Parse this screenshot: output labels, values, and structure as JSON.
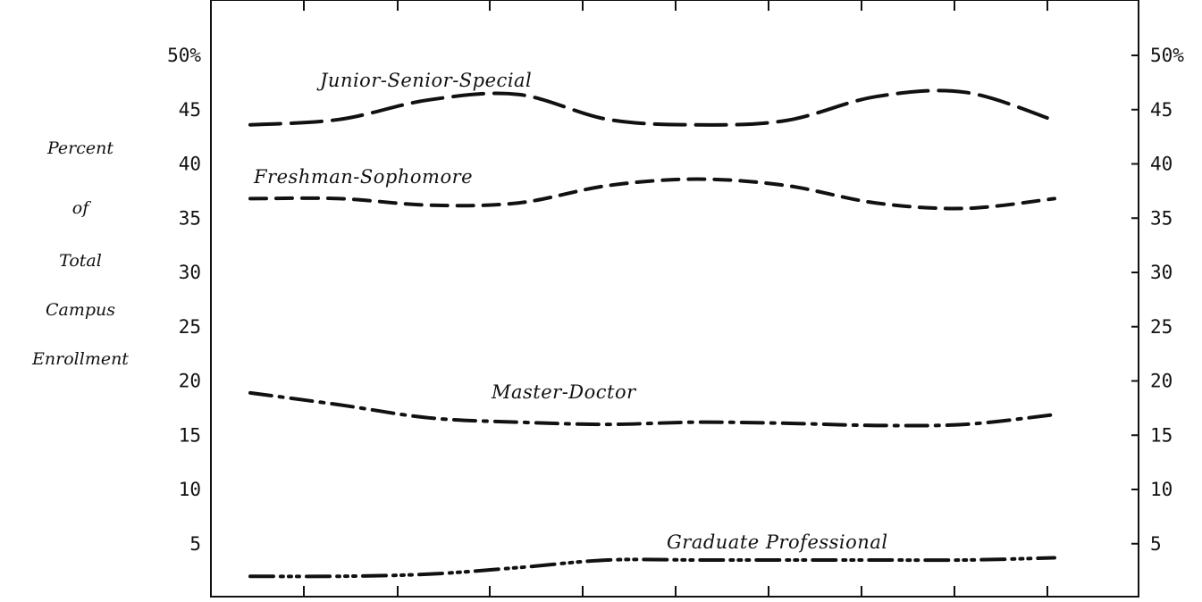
{
  "chart_data": {
    "type": "line",
    "ylabel_lines": [
      "Percent",
      "of",
      "Total",
      "Campus",
      "Enrollment"
    ],
    "ylim": [
      0,
      55
    ],
    "left_tick_labels": [
      "50%",
      "45",
      "40",
      "35",
      "30",
      "25",
      "20",
      "15",
      "10",
      "5"
    ],
    "right_tick_labels": [
      "50%",
      "45",
      "40",
      "35",
      "30",
      "25",
      "20",
      "15",
      "10",
      "5"
    ],
    "tick_values": [
      50,
      45,
      40,
      35,
      30,
      25,
      20,
      15,
      10,
      5
    ],
    "x": [
      0,
      1,
      2,
      3,
      4,
      5,
      6,
      7,
      8,
      9
    ],
    "xlim": [
      -0.5,
      9.5
    ],
    "series": [
      {
        "name": "Junior-Senior-Special",
        "style": "long-dash",
        "values": [
          43.6,
          44.1,
          45.9,
          46.4,
          44.1,
          43.6,
          44.0,
          46.2,
          46.6,
          44.0
        ]
      },
      {
        "name": "Freshman-Sophomore",
        "style": "short-dash",
        "values": [
          36.8,
          36.8,
          36.2,
          36.4,
          38.0,
          38.6,
          38.0,
          36.4,
          35.9,
          36.8
        ]
      },
      {
        "name": "Master-Doctor",
        "style": "dash-dot",
        "values": [
          18.9,
          17.8,
          16.6,
          16.2,
          16.0,
          16.2,
          16.1,
          15.9,
          16.0,
          16.9
        ]
      },
      {
        "name": "Graduate Professional",
        "style": "dash-dot-dot",
        "values": [
          2.0,
          2.0,
          2.2,
          2.8,
          3.5,
          3.5,
          3.5,
          3.5,
          3.5,
          3.7
        ]
      }
    ],
    "grid": false
  }
}
